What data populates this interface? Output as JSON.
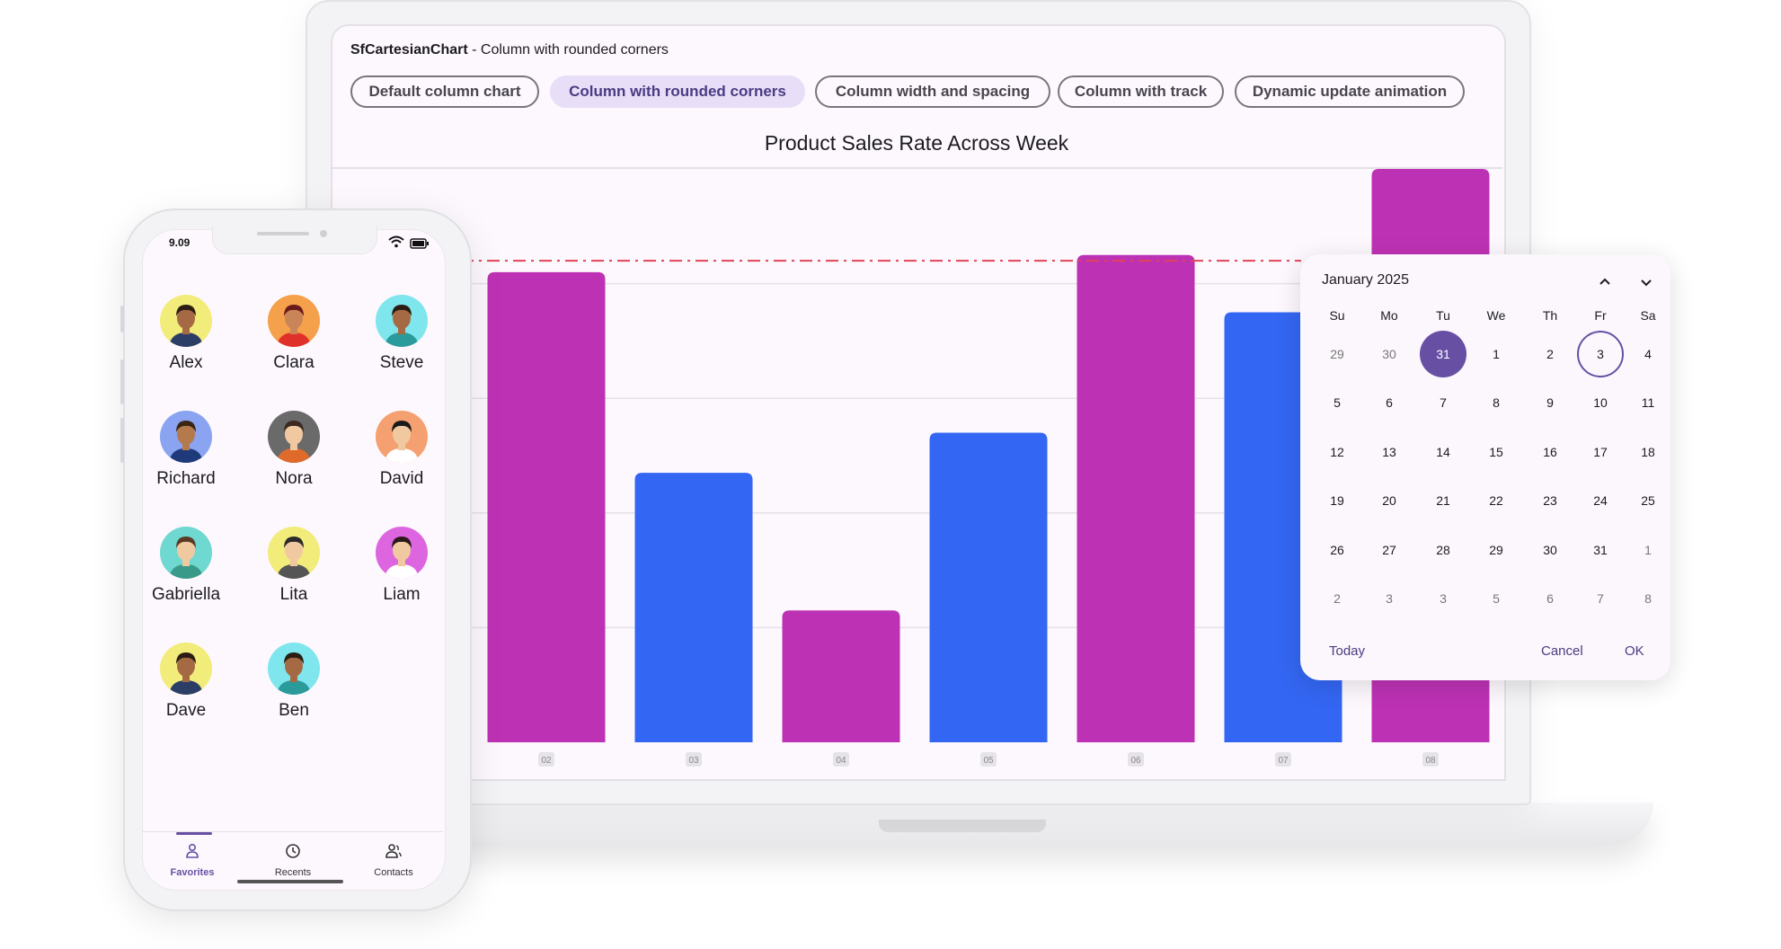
{
  "laptop": {
    "app_title_main": "SfCartesianChart",
    "app_title_sep": " - ",
    "app_title_sub": "Column with rounded corners",
    "chips": [
      {
        "label": "Default column chart",
        "selected": false
      },
      {
        "label": "Column with rounded corners",
        "selected": true
      },
      {
        "label": "Column width and spacing",
        "selected": false
      },
      {
        "label": "Column with track",
        "selected": false
      },
      {
        "label": "Dynamic update animation",
        "selected": false
      }
    ]
  },
  "chart_data": {
    "type": "bar",
    "title": "Product Sales Rate Across Week",
    "categories": [
      "02",
      "03",
      "04",
      "05",
      "06",
      "07",
      "08"
    ],
    "values": [
      82,
      47,
      23,
      54,
      85,
      75,
      100
    ],
    "colors": [
      "#bd32b4",
      "#3366f2",
      "#bd32b4",
      "#3366f2",
      "#bd32b4",
      "#3366f2",
      "#bd32b4"
    ],
    "average_line": 84,
    "average_line_color": "#e0435a",
    "ylim": [
      0,
      100
    ],
    "grid": true
  },
  "phone": {
    "time": "9.09",
    "contacts": [
      {
        "name": "Alex",
        "bg": "#f2ec7a",
        "skin": "#a56a43",
        "hair": "#2b1d14",
        "shirt": "#2c3e66"
      },
      {
        "name": "Clara",
        "bg": "#f5a04a",
        "skin": "#c98458",
        "hair": "#6a1a1a",
        "shirt": "#e0302a"
      },
      {
        "name": "Steve",
        "bg": "#7fe6ee",
        "skin": "#a56a43",
        "hair": "#2b1d14",
        "shirt": "#2a9a9a"
      },
      {
        "name": "Richard",
        "bg": "#8aa4f2",
        "skin": "#b57a4c",
        "hair": "#3a2414",
        "shirt": "#1e3a7a"
      },
      {
        "name": "Nora",
        "bg": "#6a6a6a",
        "skin": "#f1c9a0",
        "hair": "#3a2a20",
        "shirt": "#e06a2a"
      },
      {
        "name": "David",
        "bg": "#f5a070",
        "skin": "#f1c9a0",
        "hair": "#1a1a1a",
        "shirt": "#ffffff"
      },
      {
        "name": "Gabriella",
        "bg": "#6fd8d0",
        "skin": "#f1c9a0",
        "hair": "#5a3a24",
        "shirt": "#3a9a8a"
      },
      {
        "name": "Lita",
        "bg": "#f2ec7a",
        "skin": "#f1c9a0",
        "hair": "#2a2a2a",
        "shirt": "#555555"
      },
      {
        "name": "Liam",
        "bg": "#dd66e0",
        "skin": "#f1c9a0",
        "hair": "#2a1a1a",
        "shirt": "#ffffff"
      },
      {
        "name": "Dave",
        "bg": "#f2ec7a",
        "skin": "#a56a43",
        "hair": "#2b1d14",
        "shirt": "#2c3e66"
      },
      {
        "name": "Ben",
        "bg": "#7fe6ee",
        "skin": "#a56a43",
        "hair": "#2b1d14",
        "shirt": "#2a9a9a"
      }
    ],
    "nav": [
      {
        "label": "Favorites",
        "icon": "person-icon",
        "active": true
      },
      {
        "label": "Recents",
        "icon": "clock-icon",
        "active": false
      },
      {
        "label": "Contacts",
        "icon": "people-icon",
        "active": false
      }
    ]
  },
  "calendar": {
    "month": "January 2025",
    "weekdays": [
      "Su",
      "Mo",
      "Tu",
      "We",
      "Th",
      "Fr",
      "Sa"
    ],
    "weeks": [
      [
        "29",
        "30",
        "31",
        "1",
        "2",
        "3",
        "4"
      ],
      [
        "5",
        "6",
        "7",
        "8",
        "9",
        "10",
        "11"
      ],
      [
        "12",
        "13",
        "14",
        "15",
        "16",
        "17",
        "18"
      ],
      [
        "19",
        "20",
        "21",
        "22",
        "23",
        "24",
        "25"
      ],
      [
        "26",
        "27",
        "28",
        "29",
        "30",
        "31",
        "1"
      ],
      [
        "2",
        "3",
        "3",
        "5",
        "6",
        "7",
        "8"
      ]
    ],
    "selected_day": "31",
    "today_day": "3",
    "today_label": "Today",
    "cancel_label": "Cancel",
    "ok_label": "OK",
    "accent": "#6750a4"
  }
}
